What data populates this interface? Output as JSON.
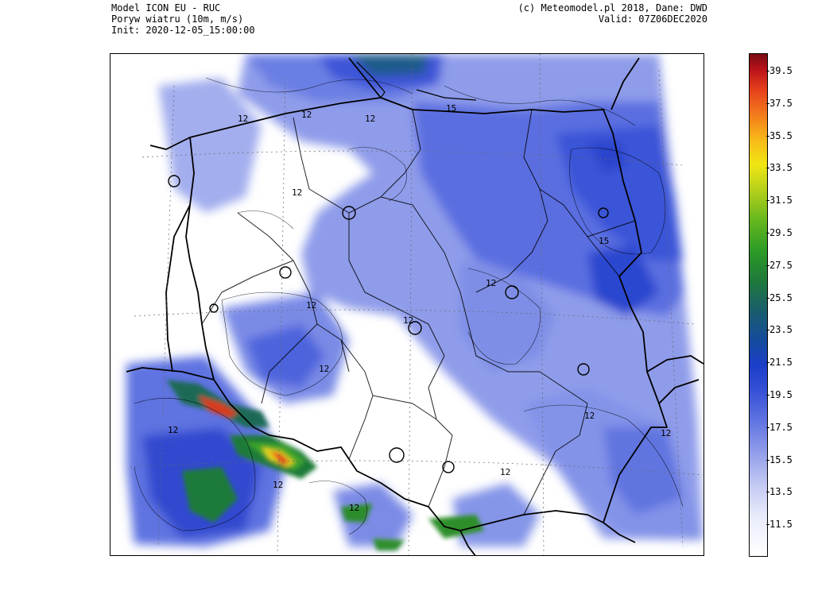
{
  "header": {
    "model_line": "Model ICON EU - RUC",
    "variable_line": "Poryw wiatru (10m, m/s)",
    "init_line": "Init: 2020-12-05_15:00:00",
    "copyright_line": "(c) Meteomodel.pl 2018, Dane: DWD",
    "valid_line": "Valid: 07Z06DEC2020"
  },
  "colorbar": {
    "ticks": [
      "39.5",
      "37.5",
      "35.5",
      "33.5",
      "31.5",
      "29.5",
      "27.5",
      "25.5",
      "23.5",
      "21.5",
      "19.5",
      "17.5",
      "15.5",
      "13.5",
      "11.5"
    ],
    "colors": {
      "low": "#ffffff",
      "light_blue": "#c4caf3",
      "blue": "#3650d6",
      "dark_blue": "#134c9c",
      "green": "#2e9c26",
      "yellow": "#f0e613",
      "orange": "#f27a1b",
      "red": "#e63e1c",
      "dark_red": "#7a0c14"
    }
  },
  "map": {
    "contour_labels": [
      "12",
      "12",
      "12",
      "12",
      "15",
      "12",
      "12",
      "12",
      "12",
      "15",
      "12",
      "12",
      "12",
      "12",
      "12",
      "12"
    ]
  }
}
